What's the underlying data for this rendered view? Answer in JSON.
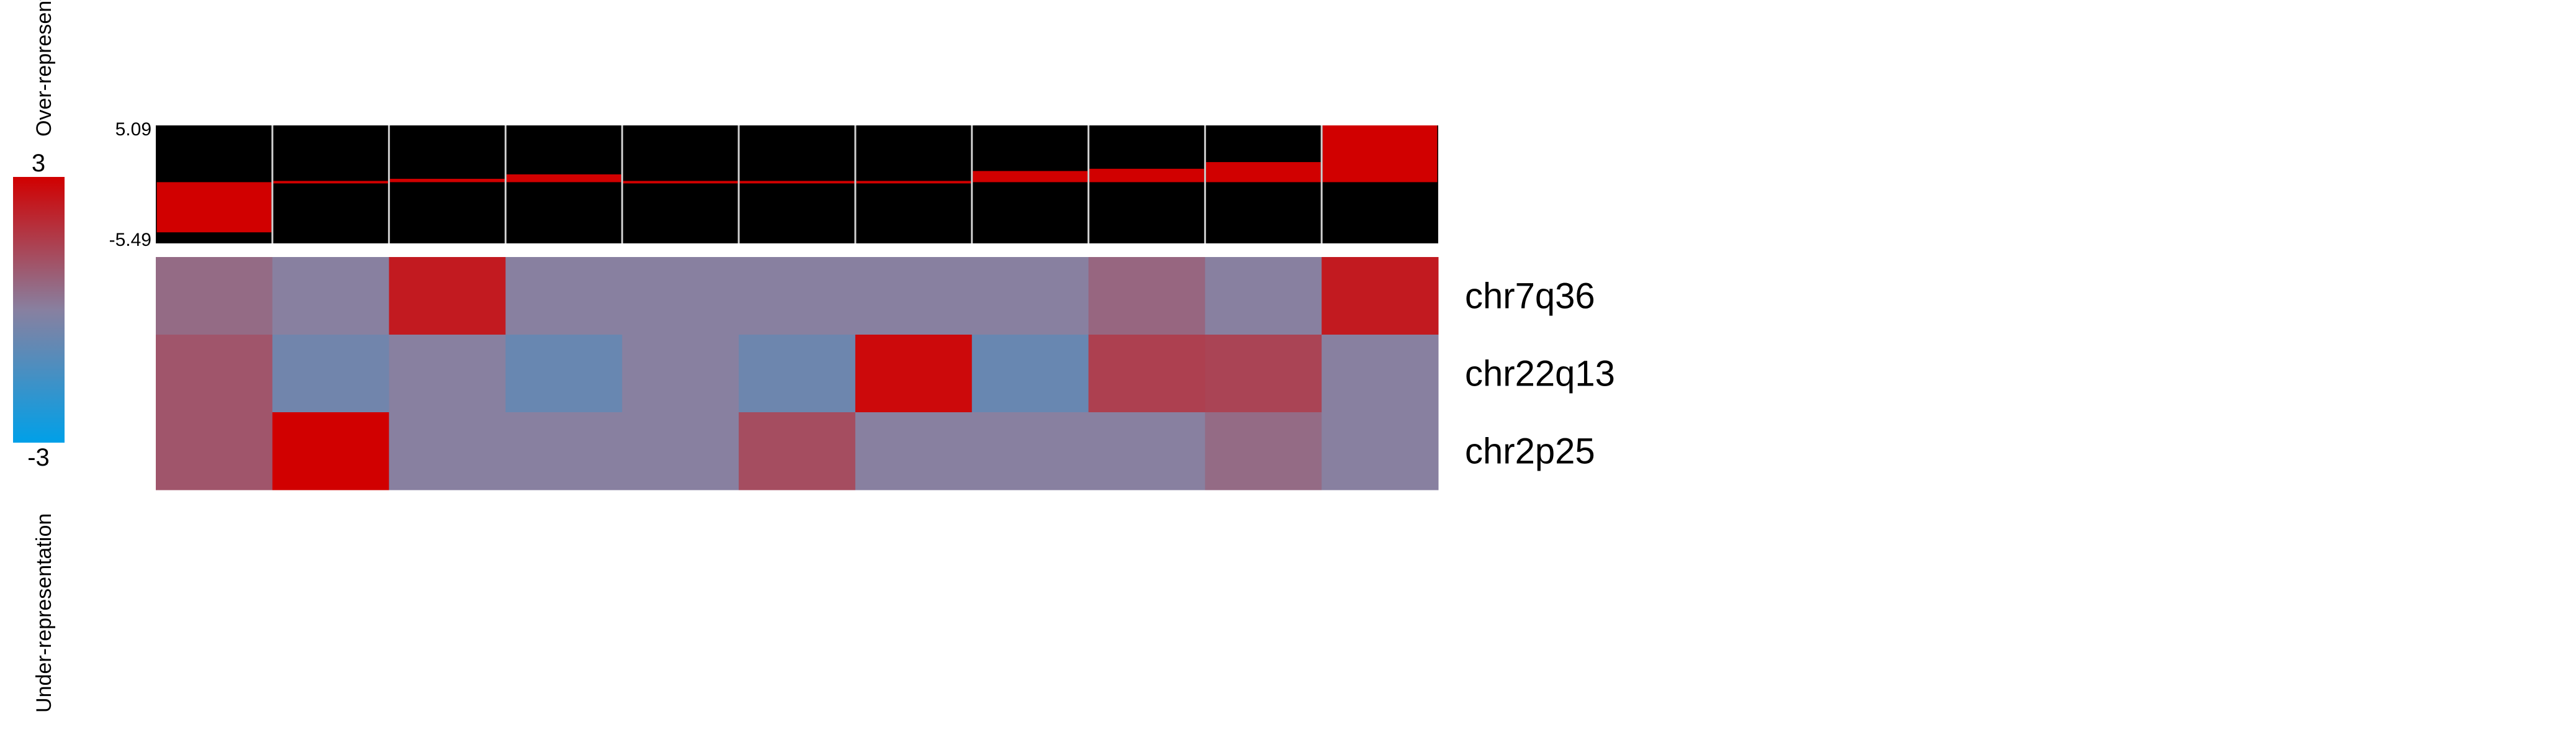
{
  "chart_data": {
    "type": "heatmap",
    "colorbar": {
      "min": -3,
      "max": 3,
      "max_label": "3",
      "min_label": "-3",
      "over_label": "Over-representation",
      "under_label": "Under-representation",
      "colors": {
        "low": "#00a0e8",
        "mid": "#8880a0",
        "high": "#d10000"
      }
    },
    "top_bars": {
      "ymax_label": "5.09",
      "ymin_label": "-5.49",
      "ylim": [
        -5.49,
        5.09
      ],
      "values": [
        -4.5,
        -0.1,
        0.3,
        0.7,
        0.0,
        0.0,
        0.0,
        1.0,
        1.2,
        1.8,
        5.09
      ],
      "bar_color": "#d10000",
      "background": "#000000"
    },
    "rows": [
      "chr7q36",
      "chr22q13",
      "chr2p25"
    ],
    "matrix": [
      [
        0.5,
        0.0,
        2.4,
        0.0,
        0.0,
        0.0,
        0.0,
        0.0,
        0.6,
        0.0,
        2.4
      ],
      [
        1.0,
        -0.5,
        0.0,
        -0.7,
        0.0,
        -0.6,
        2.8,
        -0.7,
        1.5,
        1.4,
        0.0
      ],
      [
        1.0,
        3.0,
        0.0,
        0.0,
        0.0,
        1.2,
        0.0,
        0.0,
        0.0,
        0.5,
        0.0
      ]
    ]
  }
}
